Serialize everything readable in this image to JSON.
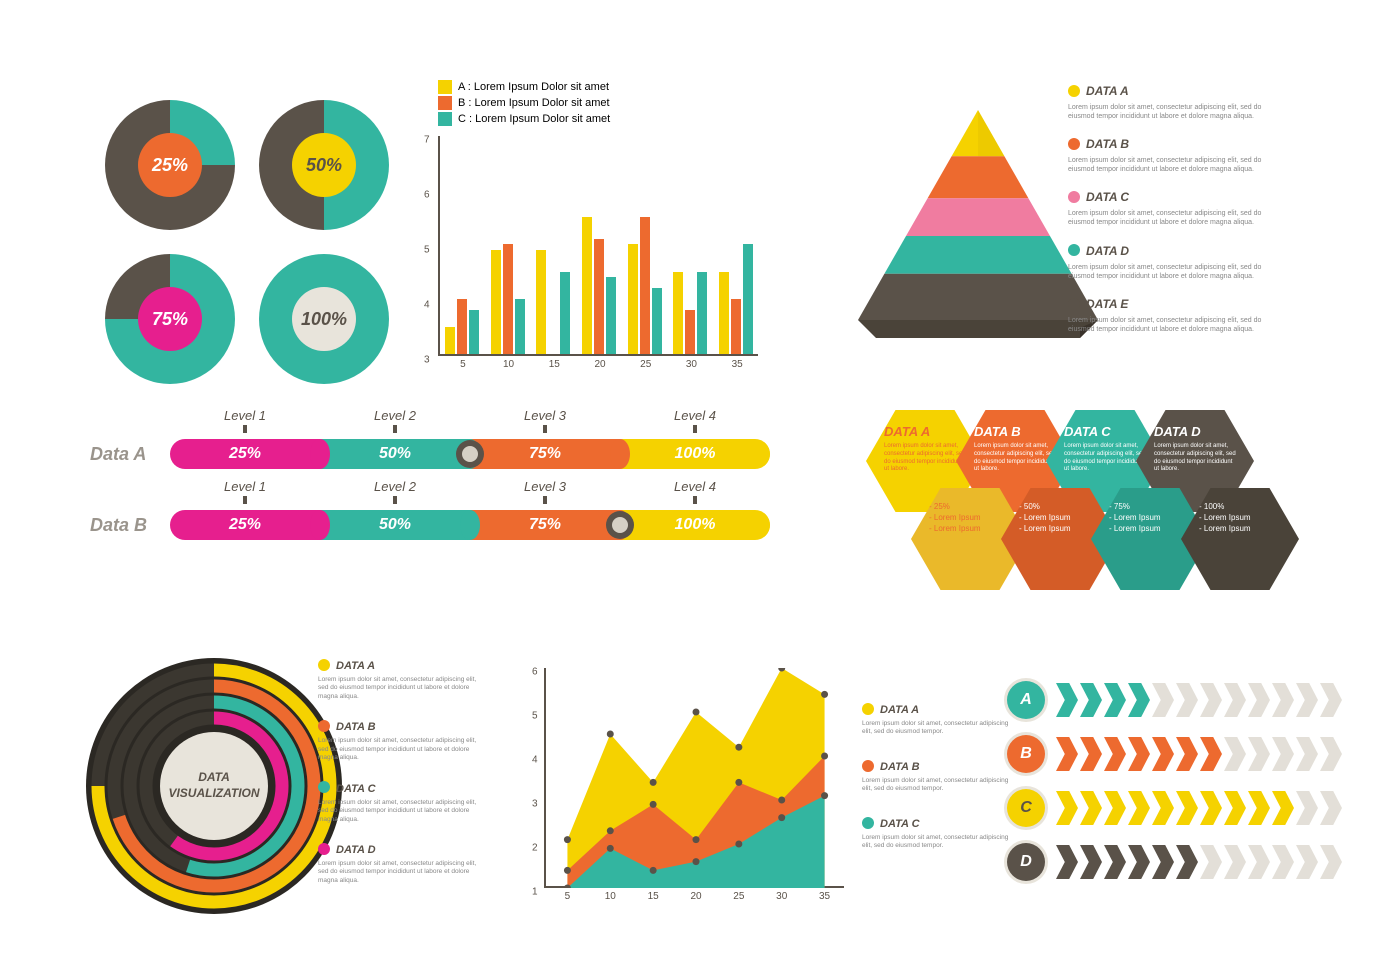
{
  "palette": {
    "yellow": "#f5d200",
    "orange": "#ed6a2f",
    "teal": "#33b5a0",
    "pink": "#e61f8e",
    "brown": "#5a5249",
    "cream": "#e8e4db",
    "grey": "#d6d0c5",
    "lightgrey": "#e3dfd8",
    "pyr_pink": "#f07ca0"
  },
  "donuts": [
    {
      "label": "25%",
      "pct": 25,
      "ring": "#33b5a0",
      "inner": "#ed6a2f",
      "bg": "#5a5249"
    },
    {
      "label": "50%",
      "pct": 50,
      "ring": "#33b5a0",
      "inner": "#f5d200",
      "bg": "#5a5249",
      "text": "#5a5249"
    },
    {
      "label": "75%",
      "pct": 75,
      "ring": "#33b5a0",
      "inner": "#e61f8e",
      "bg": "#5a5249"
    },
    {
      "label": "100%",
      "pct": 100,
      "ring": "#33b5a0",
      "inner": "#e8e4db",
      "bg": "#5a5249",
      "text": "#5a5249"
    }
  ],
  "barchart": {
    "legend": [
      {
        "color": "#f5d200",
        "label": "A : Lorem Ipsum Dolor sit amet"
      },
      {
        "color": "#ed6a2f",
        "label": "B : Lorem Ipsum Dolor sit amet"
      },
      {
        "color": "#33b5a0",
        "label": "C : Lorem Ipsum Dolor sit amet"
      }
    ],
    "ymin": 3,
    "ymax": 7,
    "yticks": [
      3,
      4,
      5,
      6,
      7
    ],
    "xticks": [
      5,
      10,
      15,
      20,
      25,
      30,
      35
    ],
    "series": {
      "A": [
        3.5,
        4.9,
        4.9,
        5.5,
        5.0,
        4.5,
        4.5
      ],
      "B": [
        4.0,
        5.0,
        3.0,
        5.1,
        5.5,
        3.8,
        4.0
      ],
      "C": [
        3.8,
        4.0,
        4.5,
        4.4,
        4.2,
        4.5,
        5.0
      ]
    },
    "colors": [
      "#f5d200",
      "#ed6a2f",
      "#33b5a0"
    ]
  },
  "pyramid": {
    "layers": [
      {
        "label": "DATA A",
        "color": "#f5d200",
        "bullet": "#f5d200"
      },
      {
        "label": "DATA B",
        "color": "#ed6a2f",
        "bullet": "#ed6a2f"
      },
      {
        "label": "DATA C",
        "color": "#f07ca0",
        "bullet": "#f07ca0"
      },
      {
        "label": "DATA D",
        "color": "#33b5a0",
        "bullet": "#33b5a0"
      },
      {
        "label": "DATA E",
        "color": "#5a5249",
        "bullet": "#5a5249"
      }
    ],
    "desc": "Lorem ipsum dolor sit amet, consectetur adipiscing elit, sed do eiusmod tempor incididunt ut labore et dolore magna aliqua."
  },
  "levels": {
    "headers": [
      "Level 1",
      "Level 2",
      "Level 3",
      "Level 4"
    ],
    "rows": [
      {
        "name": "Data A",
        "marker_after": 1,
        "segs": [
          {
            "label": "25%",
            "color": "#e61f8e",
            "w": 25
          },
          {
            "label": "50%",
            "color": "#33b5a0",
            "w": 25
          },
          {
            "label": "75%",
            "color": "#ed6a2f",
            "w": 25
          },
          {
            "label": "100%",
            "color": "#f5d200",
            "w": 25
          }
        ]
      },
      {
        "name": "Data B",
        "marker_after": 2,
        "segs": [
          {
            "label": "25%",
            "color": "#e61f8e",
            "w": 25
          },
          {
            "label": "50%",
            "color": "#33b5a0",
            "w": 25
          },
          {
            "label": "75%",
            "color": "#ed6a2f",
            "w": 25
          },
          {
            "label": "100%",
            "color": "#f5d200",
            "w": 25
          }
        ]
      }
    ]
  },
  "hex": {
    "top": [
      {
        "label": "DATA A",
        "bg": "#f5d200",
        "fg": "#ed6a2f"
      },
      {
        "label": "DATA B",
        "bg": "#ed6a2f",
        "fg": "#ffffff"
      },
      {
        "label": "DATA C",
        "bg": "#33b5a0",
        "fg": "#ffffff"
      },
      {
        "label": "DATA D",
        "bg": "#5a5249",
        "fg": "#ffffff"
      }
    ],
    "top_desc": "Lorem ipsum dolor sit amet, consectetur adipiscing elit, sed do eiusmod tempor incididunt ut labore.",
    "bottom": [
      {
        "pct": "- 25%",
        "l1": "- Lorem Ipsum",
        "l2": "- Lorem Ipsum",
        "bg": "#eab92a",
        "fg": "#ed6a2f"
      },
      {
        "pct": "- 50%",
        "l1": "- Lorem Ipsum",
        "l2": "- Lorem Ipsum",
        "bg": "#d45c27",
        "fg": "#ffffff"
      },
      {
        "pct": "- 75%",
        "l1": "- Lorem Ipsum",
        "l2": "- Lorem Ipsum",
        "bg": "#2a9d8a",
        "fg": "#ffffff"
      },
      {
        "pct": "- 100%",
        "l1": "- Lorem Ipsum",
        "l2": "- Lorem Ipsum",
        "bg": "#4a4339",
        "fg": "#ffffff"
      }
    ]
  },
  "rings": {
    "center": "DATA VISUALIZATION",
    "items": [
      {
        "label": "DATA A",
        "color": "#f5d200",
        "pct": 75
      },
      {
        "label": "DATA B",
        "color": "#ed6a2f",
        "pct": 70
      },
      {
        "label": "DATA C",
        "color": "#33b5a0",
        "pct": 55
      },
      {
        "label": "DATA D",
        "color": "#e61f8e",
        "pct": 60
      }
    ],
    "desc": "Lorem ipsum dolor sit amet, consectetur adipiscing elit, sed do eiusmod tempor incididunt ut labore et dolore magna aliqua."
  },
  "area": {
    "ymin": 1,
    "ymax": 6,
    "yticks": [
      1,
      2,
      3,
      4,
      5,
      6
    ],
    "xticks": [
      5,
      10,
      15,
      20,
      25,
      30,
      35
    ],
    "series": [
      {
        "label": "DATA A",
        "color": "#f5d200",
        "vals": [
          2.1,
          4.5,
          3.4,
          5.0,
          4.2,
          6.0,
          5.4
        ]
      },
      {
        "label": "DATA B",
        "color": "#ed6a2f",
        "vals": [
          1.4,
          2.3,
          2.9,
          2.1,
          3.4,
          3.0,
          4.0
        ]
      },
      {
        "label": "DATA C",
        "color": "#33b5a0",
        "vals": [
          1.0,
          1.9,
          1.4,
          1.6,
          2.0,
          2.6,
          3.1
        ]
      }
    ],
    "desc": "Lorem ipsum dolor sit amet, consectetur adipiscing elit, sed do eiusmod tempor."
  },
  "chevrons": {
    "total": 12,
    "rows": [
      {
        "badge": "A",
        "badge_bg": "#33b5a0",
        "badge_fg": "#fff",
        "badge_outer": "#e8e4db",
        "color": "#33b5a0",
        "fill": 4
      },
      {
        "badge": "B",
        "badge_bg": "#ed6a2f",
        "badge_fg": "#fff",
        "badge_outer": "#e8e4db",
        "color": "#ed6a2f",
        "fill": 7
      },
      {
        "badge": "C",
        "badge_bg": "#f5d200",
        "badge_fg": "#5a5249",
        "badge_outer": "#e8e4db",
        "color": "#f5d200",
        "fill": 10
      },
      {
        "badge": "D",
        "badge_bg": "#5a5249",
        "badge_fg": "#fff",
        "badge_outer": "#e8e4db",
        "color": "#5a5249",
        "fill": 6
      }
    ],
    "empty_color": "#e3dfd8"
  }
}
